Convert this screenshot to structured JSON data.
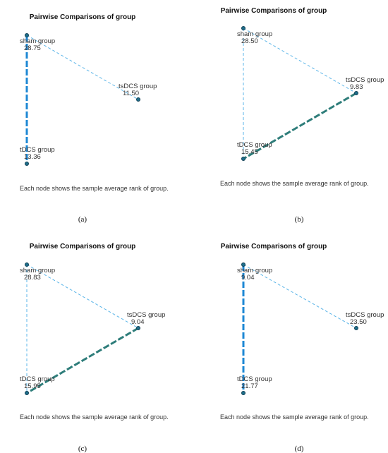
{
  "footer_text": "Each node shows the sample average rank of group.",
  "colors": {
    "weak": "#5bb5e8",
    "strong_blue": "#1e88d4",
    "strong_teal": "#2e7d7a",
    "node": "#1f6f8b"
  },
  "panels": [
    {
      "title": "Pairwise Comparisons of group",
      "caption": "(a)",
      "nodes": [
        {
          "name": "sham group",
          "rank": "28.75"
        },
        {
          "name": "tsDCS group",
          "rank": "11.50"
        },
        {
          "name": "tDCS group",
          "rank": "13.36"
        }
      ],
      "edges": [
        {
          "from": 0,
          "to": 1,
          "significant": false
        },
        {
          "from": 0,
          "to": 2,
          "significant": true,
          "color": "blue"
        }
      ]
    },
    {
      "title": "Pairwise Comparisons of group",
      "caption": "(b)",
      "nodes": [
        {
          "name": "sham group",
          "rank": "28.50"
        },
        {
          "name": "tsDCS group",
          "rank": "9.83"
        },
        {
          "name": "tDCS group",
          "rank": "15.45"
        }
      ],
      "edges": [
        {
          "from": 0,
          "to": 1,
          "significant": false
        },
        {
          "from": 0,
          "to": 2,
          "significant": false
        },
        {
          "from": 1,
          "to": 2,
          "significant": true,
          "color": "teal"
        }
      ]
    },
    {
      "title": "Pairwise Comparisons of group",
      "caption": "(c)",
      "nodes": [
        {
          "name": "sham group",
          "rank": "28.83"
        },
        {
          "name": "tsDCS group",
          "rank": "9.04"
        },
        {
          "name": "tDCS group",
          "rank": "15.95"
        }
      ],
      "edges": [
        {
          "from": 0,
          "to": 1,
          "significant": false
        },
        {
          "from": 0,
          "to": 2,
          "significant": false
        },
        {
          "from": 1,
          "to": 2,
          "significant": true,
          "color": "teal"
        }
      ]
    },
    {
      "title": "Pairwise Comparisons of group",
      "caption": "(d)",
      "nodes": [
        {
          "name": "sham group",
          "rank": "9.04"
        },
        {
          "name": "tsDCS group",
          "rank": "23.50"
        },
        {
          "name": "tDCS group",
          "rank": "21.77"
        }
      ],
      "edges": [
        {
          "from": 0,
          "to": 1,
          "significant": false
        },
        {
          "from": 0,
          "to": 2,
          "significant": true,
          "color": "blue"
        }
      ]
    }
  ]
}
